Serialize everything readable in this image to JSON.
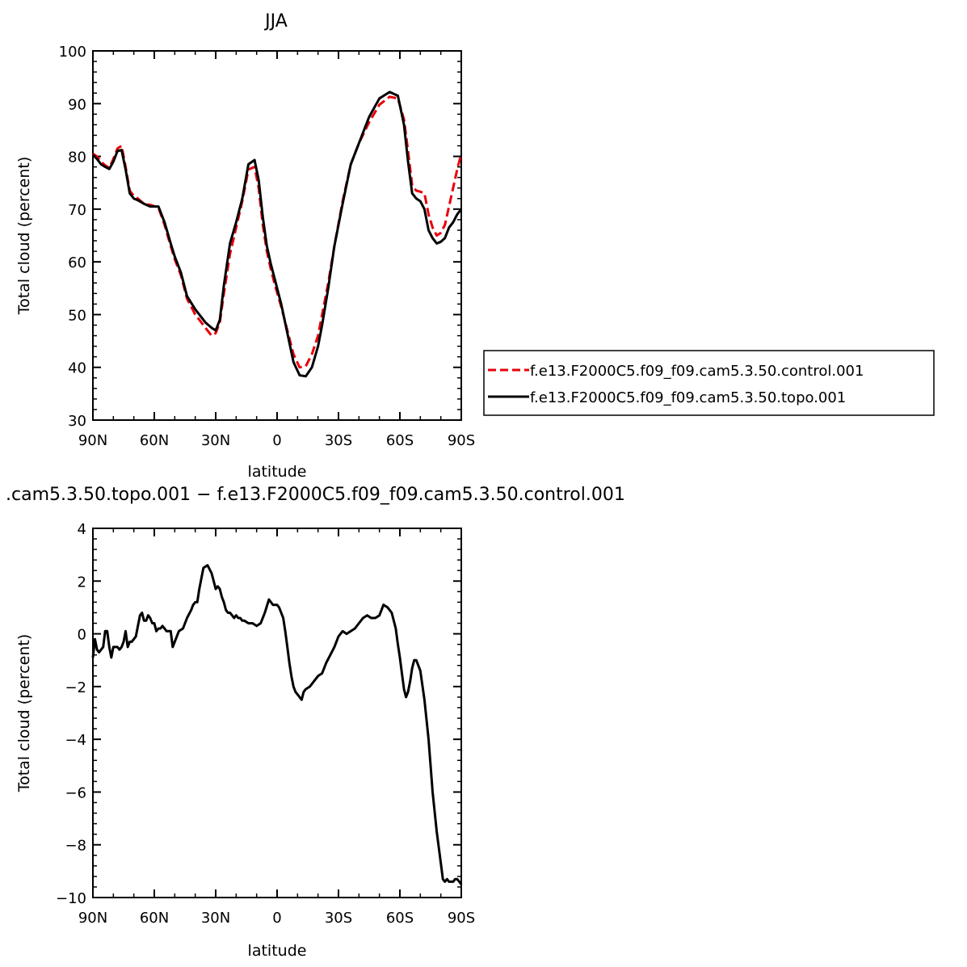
{
  "chart_data": [
    {
      "type": "line",
      "title": "JJA",
      "xlabel": "latitude",
      "ylabel": "Total cloud (percent)",
      "x_ticks": [
        {
          "value": 90,
          "label": "90N"
        },
        {
          "value": 60,
          "label": "60N"
        },
        {
          "value": 30,
          "label": "30N"
        },
        {
          "value": 0,
          "label": "0"
        },
        {
          "value": -30,
          "label": "30S"
        },
        {
          "value": -60,
          "label": "60S"
        },
        {
          "value": -90,
          "label": "90S"
        }
      ],
      "xlim": [
        90,
        -90
      ],
      "ylim": [
        30,
        100
      ],
      "y_ticks": [
        30,
        40,
        50,
        60,
        70,
        80,
        90,
        100
      ],
      "grid": false,
      "legend_position": "right",
      "series": [
        {
          "name": "f.e13.F2000C5.f09_f09.cam5.3.50.control.001",
          "color": "#e8000b",
          "dash": "dashed",
          "x": [
            90,
            88,
            86,
            84,
            82,
            80,
            78,
            76,
            74,
            72,
            70,
            68,
            65,
            62,
            58,
            55,
            52,
            50,
            47,
            44,
            40,
            37,
            35,
            32,
            30,
            28,
            26,
            23,
            20,
            17,
            14,
            11,
            9,
            7,
            5,
            3,
            1,
            -2,
            -5,
            -8,
            -11,
            -14,
            -17,
            -20,
            -22,
            -25,
            -28,
            -32,
            -36,
            -40,
            -45,
            -50,
            -55,
            -59,
            -62,
            -64,
            -66,
            -68,
            -70,
            -72,
            -74,
            -76,
            -78,
            -80,
            -82,
            -84,
            -86,
            -88,
            -90
          ],
          "y": [
            80.5,
            80.0,
            79.0,
            78.3,
            77.8,
            79.5,
            81.5,
            82.0,
            78.0,
            73.5,
            72.5,
            72.0,
            71.0,
            70.8,
            70.3,
            67.0,
            63.0,
            60.5,
            57.5,
            53.0,
            50.0,
            48.5,
            47.5,
            46.0,
            46.5,
            48.5,
            54.0,
            61.5,
            66.5,
            71.5,
            77.5,
            78.0,
            74.0,
            67.0,
            62.0,
            58.5,
            55.5,
            51.5,
            47.0,
            42.5,
            40.0,
            40.2,
            42.5,
            46.0,
            50.0,
            56.0,
            63.0,
            71.5,
            78.5,
            82.5,
            86.5,
            89.8,
            91.3,
            91.0,
            87.0,
            81.0,
            74.5,
            73.5,
            73.3,
            73.0,
            69.0,
            66.5,
            65.0,
            65.5,
            67.0,
            70.5,
            74.0,
            77.5,
            80.5
          ]
        },
        {
          "name": "f.e13.F2000C5.f09_f09.cam5.3.50.topo.001",
          "color": "#000000",
          "dash": "solid",
          "x": [
            90,
            88,
            86,
            84,
            82,
            80,
            78,
            76,
            74,
            72,
            70,
            68,
            65,
            62,
            58,
            55,
            52,
            50,
            47,
            44,
            40,
            37,
            35,
            32,
            30,
            28,
            26,
            23,
            20,
            17,
            14,
            11,
            9,
            7,
            5,
            3,
            1,
            -2,
            -5,
            -8,
            -11,
            -14,
            -17,
            -20,
            -22,
            -25,
            -28,
            -32,
            -36,
            -40,
            -45,
            -50,
            -55,
            -59,
            -62,
            -64,
            -66,
            -68,
            -70,
            -72,
            -74,
            -76,
            -78,
            -80,
            -82,
            -84,
            -86,
            -88,
            -90
          ],
          "y": [
            80.3,
            79.5,
            78.5,
            78.0,
            77.6,
            79.0,
            81.0,
            81.2,
            77.5,
            73.0,
            72.0,
            71.7,
            71.0,
            70.5,
            70.5,
            67.5,
            63.5,
            61.0,
            58.0,
            53.5,
            51.0,
            49.5,
            48.5,
            47.5,
            47.0,
            49.0,
            55.5,
            63.5,
            67.5,
            72.0,
            78.5,
            79.3,
            75.5,
            68.5,
            63.0,
            59.5,
            56.5,
            52.0,
            46.5,
            41.0,
            38.5,
            38.3,
            40.0,
            44.0,
            48.0,
            55.0,
            63.0,
            71.0,
            78.5,
            82.5,
            87.5,
            91.0,
            92.2,
            91.5,
            86.0,
            79.0,
            73.0,
            72.0,
            71.5,
            70.0,
            66.0,
            64.5,
            63.5,
            63.8,
            64.5,
            66.5,
            67.5,
            69.0,
            70.0
          ]
        }
      ]
    },
    {
      "type": "line",
      "title": ".cam5.3.50.topo.001 − f.e13.F2000C5.f09_f09.cam5.3.50.control.001",
      "xlabel": "latitude",
      "ylabel": "Total cloud (percent)",
      "x_ticks": [
        {
          "value": 90,
          "label": "90N"
        },
        {
          "value": 60,
          "label": "60N"
        },
        {
          "value": 30,
          "label": "30N"
        },
        {
          "value": 0,
          "label": "0"
        },
        {
          "value": -30,
          "label": "30S"
        },
        {
          "value": -60,
          "label": "60S"
        },
        {
          "value": -90,
          "label": "90S"
        }
      ],
      "xlim": [
        90,
        -90
      ],
      "ylim": [
        -10,
        4
      ],
      "y_ticks": [
        -10,
        -8,
        -6,
        -4,
        -2,
        0,
        2,
        4
      ],
      "y_tick_labels": [
        "−10",
        "−8",
        "−6",
        "−4",
        "−2",
        "0",
        "2",
        "4"
      ],
      "grid": false,
      "series": [
        {
          "name": "",
          "color": "#000000",
          "dash": "solid",
          "x": [
            90,
            89,
            88,
            87,
            86,
            85,
            84,
            83,
            82,
            81,
            80,
            79,
            78,
            77,
            76,
            75,
            74,
            73,
            72,
            71,
            70,
            69,
            68,
            67,
            66,
            65,
            64,
            63,
            62,
            61,
            60,
            59,
            58,
            57,
            56,
            55,
            54,
            52,
            51,
            50,
            48,
            46,
            44,
            42,
            41,
            40,
            39,
            38,
            36,
            34,
            32,
            31,
            30,
            29,
            28,
            27,
            26,
            25,
            24,
            23,
            22,
            21,
            20,
            19,
            18,
            17,
            16,
            14,
            12,
            10,
            8,
            6,
            4,
            3,
            2,
            1,
            0,
            -1,
            -2,
            -3,
            -4,
            -5,
            -6,
            -7,
            -8,
            -9,
            -10,
            -11,
            -12,
            -13,
            -14,
            -16,
            -18,
            -20,
            -22,
            -24,
            -26,
            -28,
            -30,
            -32,
            -34,
            -36,
            -38,
            -40,
            -42,
            -44,
            -46,
            -48,
            -50,
            -52,
            -54,
            -56,
            -58,
            -59,
            -60,
            -61,
            -62,
            -63,
            -64,
            -65,
            -66,
            -67,
            -68,
            -70,
            -72,
            -74,
            -75,
            -76,
            -78,
            -80,
            -81,
            -82,
            -83,
            -84,
            -85,
            -86,
            -87,
            -88,
            -89,
            -90
          ],
          "y": [
            -0.9,
            -0.2,
            -0.6,
            -0.7,
            -0.6,
            -0.5,
            0.1,
            0.1,
            -0.5,
            -0.9,
            -0.5,
            -0.5,
            -0.5,
            -0.6,
            -0.5,
            -0.3,
            0.1,
            -0.5,
            -0.3,
            -0.3,
            -0.2,
            -0.1,
            0.3,
            0.7,
            0.8,
            0.5,
            0.5,
            0.7,
            0.6,
            0.4,
            0.4,
            0.1,
            0.2,
            0.2,
            0.3,
            0.2,
            0.1,
            0.1,
            -0.5,
            -0.3,
            0.1,
            0.2,
            0.6,
            0.9,
            1.1,
            1.2,
            1.2,
            1.7,
            2.5,
            2.6,
            2.3,
            2.0,
            1.7,
            1.8,
            1.7,
            1.4,
            1.2,
            0.9,
            0.8,
            0.8,
            0.7,
            0.6,
            0.7,
            0.6,
            0.6,
            0.5,
            0.5,
            0.4,
            0.4,
            0.3,
            0.4,
            0.8,
            1.3,
            1.2,
            1.1,
            1.1,
            1.1,
            1.0,
            0.8,
            0.6,
            0.1,
            -0.5,
            -1.1,
            -1.6,
            -2.0,
            -2.2,
            -2.3,
            -2.4,
            -2.5,
            -2.2,
            -2.1,
            -2.0,
            -1.8,
            -1.6,
            -1.5,
            -1.1,
            -0.8,
            -0.5,
            -0.1,
            0.1,
            0.0,
            0.1,
            0.2,
            0.4,
            0.6,
            0.7,
            0.6,
            0.6,
            0.7,
            1.1,
            1.0,
            0.8,
            0.2,
            -0.4,
            -0.9,
            -1.5,
            -2.1,
            -2.4,
            -2.2,
            -1.8,
            -1.3,
            -1.0,
            -1.0,
            -1.4,
            -2.5,
            -4.0,
            -5.0,
            -6.0,
            -7.5,
            -8.7,
            -9.3,
            -9.4,
            -9.3,
            -9.4,
            -9.4,
            -9.4,
            -9.3,
            -9.3,
            -9.4,
            -9.5
          ]
        }
      ]
    }
  ]
}
